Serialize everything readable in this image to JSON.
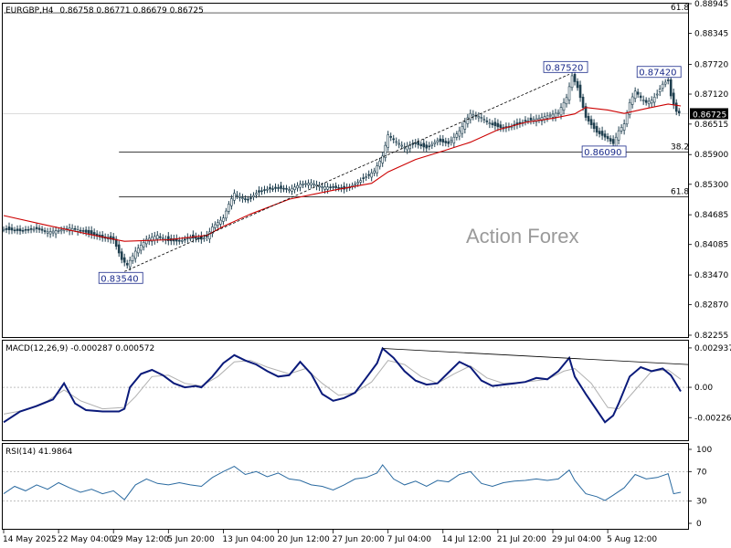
{
  "header": {
    "symbol": "EURGBP,H4",
    "ohlc": "0.86758 0.86771 0.86679 0.86725"
  },
  "watermark": "Action Forex",
  "colors": {
    "candle": "#1f3f4f",
    "ma": "#cc0000",
    "macd": "#0a1a7a",
    "macd_signal": "#b0b0b0",
    "rsi": "#2a6aa0",
    "fib": "#000000",
    "price_marker": "#000000"
  },
  "chart_data": [
    {
      "type": "candlestick",
      "name": "price",
      "ylim": [
        0.82255,
        0.88945
      ],
      "y_ticks": [
        "0.88945",
        "0.88345",
        "0.87720",
        "0.87120",
        "0.86515",
        "0.85900",
        "0.85300",
        "0.84685",
        "0.84085",
        "0.83470",
        "0.82870",
        "0.82255"
      ],
      "last_price": "0.86725",
      "close_path": [
        [
          0,
          0.8439
        ],
        [
          3,
          0.8436
        ],
        [
          6,
          0.844
        ],
        [
          8,
          0.8434
        ],
        [
          10,
          0.8437
        ],
        [
          12,
          0.8442
        ],
        [
          14,
          0.8437
        ],
        [
          16,
          0.8429
        ],
        [
          18,
          0.8422
        ],
        [
          20,
          0.8418
        ],
        [
          21.5,
          0.8378
        ],
        [
          22.5,
          0.8367
        ],
        [
          24,
          0.8395
        ],
        [
          26,
          0.8419
        ],
        [
          28,
          0.8427
        ],
        [
          30,
          0.8416
        ],
        [
          32,
          0.8415
        ],
        [
          34,
          0.8422
        ],
        [
          36,
          0.8419
        ],
        [
          37,
          0.8424
        ],
        [
          38,
          0.8444
        ],
        [
          40,
          0.8462
        ],
        [
          41,
          0.849
        ],
        [
          42,
          0.8512
        ],
        [
          43,
          0.8505
        ],
        [
          44.5,
          0.8498
        ],
        [
          46,
          0.8512
        ],
        [
          48,
          0.852
        ],
        [
          50,
          0.8522
        ],
        [
          52,
          0.8519
        ],
        [
          54,
          0.853
        ],
        [
          56,
          0.8533
        ],
        [
          58,
          0.8525
        ],
        [
          60,
          0.8524
        ],
        [
          62,
          0.852
        ],
        [
          64,
          0.853
        ],
        [
          66,
          0.8545
        ],
        [
          67.5,
          0.8557
        ],
        [
          69,
          0.8587
        ],
        [
          70,
          0.863
        ],
        [
          71,
          0.862
        ],
        [
          73,
          0.8605
        ],
        [
          75,
          0.8612
        ],
        [
          77,
          0.8603
        ],
        [
          79,
          0.8618
        ],
        [
          81,
          0.8612
        ],
        [
          83,
          0.8638
        ],
        [
          85,
          0.8673
        ],
        [
          87,
          0.8665
        ],
        [
          89,
          0.865
        ],
        [
          91,
          0.8642
        ],
        [
          93,
          0.8648
        ],
        [
          95,
          0.8657
        ],
        [
          97,
          0.8662
        ],
        [
          99,
          0.8668
        ],
        [
          101,
          0.8675
        ],
        [
          102.5,
          0.8705
        ],
        [
          103.5,
          0.8749
        ],
        [
          104.5,
          0.8725
        ],
        [
          106,
          0.8665
        ],
        [
          108,
          0.8635
        ],
        [
          110,
          0.8622
        ],
        [
          111,
          0.8612
        ],
        [
          112,
          0.8638
        ],
        [
          113,
          0.8652
        ],
        [
          114,
          0.8695
        ],
        [
          115,
          0.8718
        ],
        [
          116,
          0.8705
        ],
        [
          117,
          0.8695
        ],
        [
          118,
          0.87
        ],
        [
          119,
          0.8712
        ],
        [
          120,
          0.8732
        ],
        [
          121,
          0.874
        ],
        [
          121.6,
          0.8702
        ],
        [
          122.5,
          0.8677
        ],
        [
          123.3,
          0.8672
        ]
      ],
      "moving_average": [
        [
          0,
          0.8467
        ],
        [
          8,
          0.8447
        ],
        [
          16,
          0.8428
        ],
        [
          22,
          0.8415
        ],
        [
          30,
          0.8418
        ],
        [
          37,
          0.8427
        ],
        [
          40,
          0.8445
        ],
        [
          45,
          0.847
        ],
        [
          52,
          0.85
        ],
        [
          60,
          0.8518
        ],
        [
          67,
          0.8532
        ],
        [
          70,
          0.8555
        ],
        [
          75,
          0.858
        ],
        [
          80,
          0.8597
        ],
        [
          85,
          0.8615
        ],
        [
          90,
          0.864
        ],
        [
          95,
          0.8655
        ],
        [
          100,
          0.8663
        ],
        [
          104,
          0.8672
        ],
        [
          106,
          0.8685
        ],
        [
          110,
          0.868
        ],
        [
          113,
          0.8673
        ],
        [
          117,
          0.8683
        ],
        [
          121,
          0.8692
        ],
        [
          123.3,
          0.8688
        ]
      ],
      "annotations": [
        {
          "label": "0.83540",
          "x": 22,
          "y": 0.8354
        },
        {
          "label": "0.87520",
          "x": 103,
          "y": 0.8752
        },
        {
          "label": "0.86090",
          "x": 110,
          "y": 0.8609
        },
        {
          "label": "0.87420",
          "x": 120,
          "y": 0.8742
        }
      ],
      "trendline": [
        [
          22,
          0.8354
        ],
        [
          103,
          0.8752
        ]
      ],
      "fib_levels": [
        {
          "label": "61.8",
          "value": 0.8876,
          "x_from": 0
        },
        {
          "label": "38.2",
          "value": 0.8595,
          "x_from": 21
        },
        {
          "label": "61.8",
          "value": 0.8505,
          "x_from": 21
        }
      ]
    },
    {
      "type": "line",
      "name": "macd",
      "title": "MACD(12,26,9) -0.000287 0.000572",
      "ylim": [
        -0.0034,
        0.003
      ],
      "y_ticks": [
        "0.002937",
        "0.00",
        "-0.00226"
      ],
      "series": [
        {
          "values": [
            [
              0,
              -0.0026
            ],
            [
              3,
              -0.0018
            ],
            [
              6,
              -0.0014
            ],
            [
              9,
              -0.0009
            ],
            [
              11,
              0.0003
            ],
            [
              13,
              -0.0012
            ],
            [
              15,
              -0.0017
            ],
            [
              18,
              -0.0018
            ],
            [
              21,
              -0.0018
            ],
            [
              22,
              -0.0016
            ],
            [
              23,
              0.0
            ],
            [
              25,
              0.001
            ],
            [
              27,
              0.0013
            ],
            [
              29,
              0.0009
            ],
            [
              31,
              0.0003
            ],
            [
              33,
              0.0
            ],
            [
              35,
              0.0001
            ],
            [
              36,
              0.0
            ],
            [
              38,
              0.0008
            ],
            [
              40,
              0.0018
            ],
            [
              42,
              0.0024
            ],
            [
              44,
              0.002
            ],
            [
              46,
              0.0017
            ],
            [
              48,
              0.0012
            ],
            [
              50,
              0.0008
            ],
            [
              52,
              0.0009
            ],
            [
              54,
              0.0019
            ],
            [
              56,
              0.001
            ],
            [
              58,
              -0.0005
            ],
            [
              60,
              -0.001
            ],
            [
              62,
              -0.0008
            ],
            [
              64,
              -0.0004
            ],
            [
              66,
              0.0007
            ],
            [
              68,
              0.0018
            ],
            [
              69,
              0.0029
            ],
            [
              71,
              0.0022
            ],
            [
              73,
              0.0012
            ],
            [
              75,
              0.0005
            ],
            [
              77,
              0.0002
            ],
            [
              79,
              0.0003
            ],
            [
              81,
              0.0011
            ],
            [
              83,
              0.0019
            ],
            [
              85,
              0.0015
            ],
            [
              87,
              0.0005
            ],
            [
              89,
              0.0001
            ],
            [
              91,
              0.0002
            ],
            [
              93,
              0.0003
            ],
            [
              95,
              0.0004
            ],
            [
              97,
              0.0007
            ],
            [
              99,
              0.0006
            ],
            [
              101,
              0.0012
            ],
            [
              103,
              0.0022
            ],
            [
              104,
              0.0008
            ],
            [
              106,
              -0.0005
            ],
            [
              108,
              -0.0017
            ],
            [
              109.5,
              -0.0026
            ],
            [
              111,
              -0.0021
            ],
            [
              112,
              -0.0012
            ],
            [
              114,
              0.0008
            ],
            [
              116,
              0.0015
            ],
            [
              118,
              0.0012
            ],
            [
              120,
              0.0014
            ],
            [
              121.5,
              0.0009
            ],
            [
              123.3,
              -0.0003
            ]
          ]
        },
        {
          "values": [
            [
              0,
              -0.002
            ],
            [
              4,
              -0.0017
            ],
            [
              8,
              -0.001
            ],
            [
              11,
              -0.0002
            ],
            [
              14,
              -0.001
            ],
            [
              18,
              -0.0016
            ],
            [
              22,
              -0.0015
            ],
            [
              24,
              -0.0007
            ],
            [
              27,
              0.0008
            ],
            [
              30,
              0.0009
            ],
            [
              33,
              0.0003
            ],
            [
              36,
              0.0001
            ],
            [
              39,
              0.0008
            ],
            [
              42,
              0.0019
            ],
            [
              45,
              0.002
            ],
            [
              48,
              0.0015
            ],
            [
              52,
              0.001
            ],
            [
              55,
              0.0014
            ],
            [
              58,
              0.0003
            ],
            [
              61,
              -0.0006
            ],
            [
              64,
              -0.0004
            ],
            [
              67,
              0.0004
            ],
            [
              70,
              0.002
            ],
            [
              73,
              0.0017
            ],
            [
              76,
              0.0008
            ],
            [
              79,
              0.0003
            ],
            [
              82,
              0.001
            ],
            [
              85,
              0.0016
            ],
            [
              88,
              0.0007
            ],
            [
              91,
              0.0003
            ],
            [
              95,
              0.0004
            ],
            [
              99,
              0.0006
            ],
            [
              102,
              0.0012
            ],
            [
              104,
              0.0014
            ],
            [
              107,
              0.0003
            ],
            [
              110,
              -0.0015
            ],
            [
              112,
              -0.0016
            ],
            [
              115,
              -0.0002
            ],
            [
              118,
              0.0012
            ],
            [
              121,
              0.0013
            ],
            [
              123.3,
              0.0006
            ]
          ]
        }
      ],
      "trendline": [
        [
          69,
          0.0029
        ],
        [
          123.3,
          0.0017
        ]
      ]
    },
    {
      "type": "line",
      "name": "rsi",
      "title": "RSI(14) 41.9864",
      "ylim": [
        0,
        100
      ],
      "y_ticks": [
        "100",
        "70",
        "30",
        "0"
      ],
      "levels": [
        70,
        30
      ],
      "series": [
        {
          "values": [
            [
              0,
              40
            ],
            [
              2,
              50
            ],
            [
              4,
              44
            ],
            [
              6,
              52
            ],
            [
              8,
              46
            ],
            [
              10,
              55
            ],
            [
              12,
              48
            ],
            [
              14,
              42
            ],
            [
              16,
              46
            ],
            [
              18,
              40
            ],
            [
              20,
              44
            ],
            [
              22,
              32
            ],
            [
              24,
              52
            ],
            [
              26,
              60
            ],
            [
              28,
              54
            ],
            [
              30,
              52
            ],
            [
              32,
              55
            ],
            [
              34,
              52
            ],
            [
              36,
              50
            ],
            [
              38,
              62
            ],
            [
              40,
              70
            ],
            [
              42,
              77
            ],
            [
              44,
              66
            ],
            [
              46,
              70
            ],
            [
              48,
              63
            ],
            [
              50,
              68
            ],
            [
              52,
              60
            ],
            [
              54,
              58
            ],
            [
              56,
              52
            ],
            [
              58,
              50
            ],
            [
              60,
              45
            ],
            [
              62,
              52
            ],
            [
              64,
              60
            ],
            [
              66,
              62
            ],
            [
              68,
              68
            ],
            [
              69,
              79
            ],
            [
              71,
              60
            ],
            [
              73,
              52
            ],
            [
              75,
              57
            ],
            [
              77,
              50
            ],
            [
              79,
              58
            ],
            [
              81,
              56
            ],
            [
              83,
              66
            ],
            [
              85,
              70
            ],
            [
              87,
              54
            ],
            [
              89,
              50
            ],
            [
              91,
              55
            ],
            [
              93,
              57
            ],
            [
              95,
              58
            ],
            [
              97,
              60
            ],
            [
              99,
              58
            ],
            [
              101,
              60
            ],
            [
              103,
              72
            ],
            [
              104,
              58
            ],
            [
              106,
              40
            ],
            [
              108,
              36
            ],
            [
              109.5,
              31
            ],
            [
              111,
              38
            ],
            [
              113,
              48
            ],
            [
              115,
              66
            ],
            [
              117,
              60
            ],
            [
              119,
              62
            ],
            [
              121,
              67
            ],
            [
              122,
              40
            ],
            [
              123.3,
              42
            ]
          ]
        }
      ]
    }
  ],
  "x_axis": {
    "ticks": [
      "14 May 2025",
      "22 May 04:00",
      "29 May 12:00",
      "5 Jun 20:00",
      "13 Jun 04:00",
      "20 Jun 12:00",
      "27 Jun 20:00",
      "7 Jul 04:00",
      "14 Jul 12:00",
      "21 Jul 20:00",
      "29 Jul 04:00",
      "5 Aug 12:00"
    ],
    "tick_index": [
      0,
      10,
      20,
      30,
      40,
      50,
      60,
      70,
      80,
      90,
      100,
      110
    ]
  }
}
